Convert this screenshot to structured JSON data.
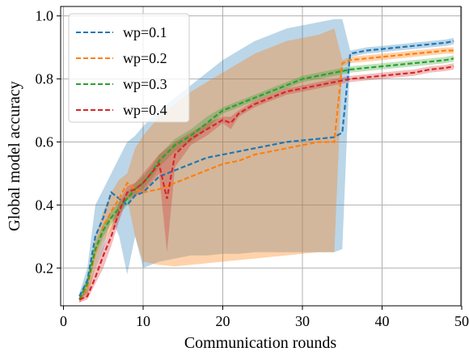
{
  "chart_data": {
    "type": "line",
    "xlabel": "Communication rounds",
    "ylabel": "Global model accuracy",
    "xlim": [
      0,
      50
    ],
    "ylim": [
      0.08,
      1.03
    ],
    "x_ticks": [
      0,
      10,
      20,
      30,
      40,
      50
    ],
    "y_ticks": [
      0.2,
      0.4,
      0.6,
      0.8,
      1.0
    ],
    "x_tick_labels": [
      "0",
      "10",
      "20",
      "30",
      "40",
      "50"
    ],
    "y_tick_labels": [
      "0.2",
      "0.4",
      "0.6",
      "0.8",
      "1.0"
    ],
    "grid": true,
    "legend_position": "top-left",
    "series": [
      {
        "name": "wp=0.1",
        "color": "#1f77b4",
        "x": [
          2,
          3,
          4,
          5,
          6,
          7,
          8,
          9,
          10,
          12,
          14,
          16,
          18,
          20,
          22,
          24,
          26,
          28,
          30,
          32,
          34,
          35,
          36,
          38,
          40,
          42,
          44,
          46,
          48,
          49
        ],
        "y": [
          0.11,
          0.16,
          0.3,
          0.36,
          0.44,
          0.42,
          0.4,
          0.43,
          0.44,
          0.49,
          0.51,
          0.53,
          0.55,
          0.56,
          0.57,
          0.58,
          0.59,
          0.6,
          0.605,
          0.61,
          0.615,
          0.63,
          0.88,
          0.89,
          0.895,
          0.9,
          0.905,
          0.91,
          0.915,
          0.92
        ],
        "band_upper": [
          0.12,
          0.2,
          0.4,
          0.45,
          0.5,
          0.55,
          0.6,
          0.62,
          0.65,
          0.7,
          0.74,
          0.78,
          0.82,
          0.86,
          0.89,
          0.92,
          0.94,
          0.96,
          0.97,
          0.98,
          0.99,
          0.99,
          0.89,
          0.9,
          0.905,
          0.91,
          0.915,
          0.92,
          0.925,
          0.93
        ],
        "band_lower": [
          0.1,
          0.12,
          0.2,
          0.26,
          0.36,
          0.3,
          0.18,
          0.3,
          0.2,
          0.22,
          0.23,
          0.24,
          0.24,
          0.245,
          0.245,
          0.25,
          0.25,
          0.25,
          0.25,
          0.25,
          0.25,
          0.26,
          0.87,
          0.88,
          0.885,
          0.89,
          0.895,
          0.9,
          0.905,
          0.91
        ]
      },
      {
        "name": "wp=0.2",
        "color": "#ff7f0e",
        "x": [
          2,
          3,
          4,
          5,
          6,
          7,
          8,
          9,
          10,
          12,
          14,
          16,
          18,
          20,
          22,
          24,
          26,
          28,
          30,
          32,
          34,
          35,
          36,
          38,
          40,
          42,
          44,
          46,
          48,
          49
        ],
        "y": [
          0.1,
          0.14,
          0.25,
          0.33,
          0.38,
          0.42,
          0.47,
          0.45,
          0.44,
          0.45,
          0.47,
          0.49,
          0.51,
          0.53,
          0.54,
          0.56,
          0.57,
          0.58,
          0.59,
          0.6,
          0.6,
          0.85,
          0.86,
          0.865,
          0.87,
          0.875,
          0.88,
          0.885,
          0.89,
          0.89
        ],
        "band_upper": [
          0.11,
          0.17,
          0.3,
          0.38,
          0.44,
          0.48,
          0.5,
          0.58,
          0.62,
          0.68,
          0.72,
          0.76,
          0.79,
          0.82,
          0.85,
          0.88,
          0.9,
          0.92,
          0.93,
          0.94,
          0.96,
          0.86,
          0.87,
          0.875,
          0.88,
          0.885,
          0.89,
          0.895,
          0.9,
          0.9
        ],
        "band_lower": [
          0.09,
          0.11,
          0.2,
          0.28,
          0.32,
          0.36,
          0.42,
          0.3,
          0.22,
          0.21,
          0.205,
          0.21,
          0.215,
          0.22,
          0.225,
          0.23,
          0.235,
          0.24,
          0.245,
          0.25,
          0.25,
          0.84,
          0.85,
          0.855,
          0.86,
          0.865,
          0.87,
          0.875,
          0.88,
          0.88
        ]
      },
      {
        "name": "wp=0.3",
        "color": "#2ca02c",
        "x": [
          2,
          3,
          4,
          5,
          6,
          7,
          8,
          9,
          10,
          11,
          12,
          14,
          16,
          18,
          20,
          22,
          24,
          26,
          28,
          30,
          32,
          34,
          36,
          38,
          40,
          42,
          44,
          46,
          48,
          49
        ],
        "y": [
          0.1,
          0.15,
          0.26,
          0.32,
          0.36,
          0.39,
          0.42,
          0.45,
          0.47,
          0.5,
          0.54,
          0.59,
          0.62,
          0.66,
          0.7,
          0.72,
          0.74,
          0.76,
          0.78,
          0.8,
          0.81,
          0.82,
          0.83,
          0.835,
          0.84,
          0.845,
          0.85,
          0.855,
          0.86,
          0.865
        ],
        "band_upper": [
          0.11,
          0.17,
          0.28,
          0.34,
          0.38,
          0.41,
          0.44,
          0.47,
          0.49,
          0.52,
          0.56,
          0.61,
          0.64,
          0.68,
          0.71,
          0.73,
          0.75,
          0.77,
          0.79,
          0.81,
          0.82,
          0.83,
          0.84,
          0.845,
          0.85,
          0.855,
          0.86,
          0.865,
          0.87,
          0.875
        ],
        "band_lower": [
          0.09,
          0.13,
          0.24,
          0.3,
          0.34,
          0.37,
          0.4,
          0.43,
          0.45,
          0.48,
          0.52,
          0.57,
          0.6,
          0.64,
          0.69,
          0.71,
          0.73,
          0.75,
          0.77,
          0.79,
          0.8,
          0.81,
          0.82,
          0.825,
          0.83,
          0.835,
          0.84,
          0.845,
          0.85,
          0.855
        ]
      },
      {
        "name": "wp=0.4",
        "color": "#d62728",
        "x": [
          2,
          3,
          4,
          5,
          6,
          7,
          8,
          9,
          10,
          11,
          12,
          13,
          14,
          16,
          18,
          20,
          21,
          22,
          24,
          26,
          28,
          30,
          32,
          34,
          36,
          38,
          40,
          42,
          44,
          46,
          48,
          49
        ],
        "y": [
          0.1,
          0.11,
          0.17,
          0.24,
          0.3,
          0.38,
          0.44,
          0.45,
          0.47,
          0.5,
          0.53,
          0.42,
          0.56,
          0.61,
          0.64,
          0.67,
          0.66,
          0.69,
          0.72,
          0.74,
          0.76,
          0.77,
          0.78,
          0.79,
          0.8,
          0.805,
          0.81,
          0.815,
          0.82,
          0.83,
          0.835,
          0.84
        ],
        "band_upper": [
          0.11,
          0.13,
          0.2,
          0.27,
          0.33,
          0.41,
          0.46,
          0.47,
          0.5,
          0.53,
          0.56,
          0.58,
          0.6,
          0.63,
          0.66,
          0.68,
          0.68,
          0.7,
          0.73,
          0.75,
          0.77,
          0.78,
          0.79,
          0.8,
          0.81,
          0.815,
          0.82,
          0.825,
          0.83,
          0.84,
          0.845,
          0.85
        ],
        "band_lower": [
          0.09,
          0.1,
          0.15,
          0.2,
          0.27,
          0.35,
          0.42,
          0.43,
          0.44,
          0.47,
          0.5,
          0.25,
          0.52,
          0.59,
          0.62,
          0.66,
          0.64,
          0.68,
          0.71,
          0.73,
          0.75,
          0.76,
          0.77,
          0.78,
          0.79,
          0.795,
          0.8,
          0.805,
          0.81,
          0.82,
          0.825,
          0.83
        ]
      }
    ]
  }
}
